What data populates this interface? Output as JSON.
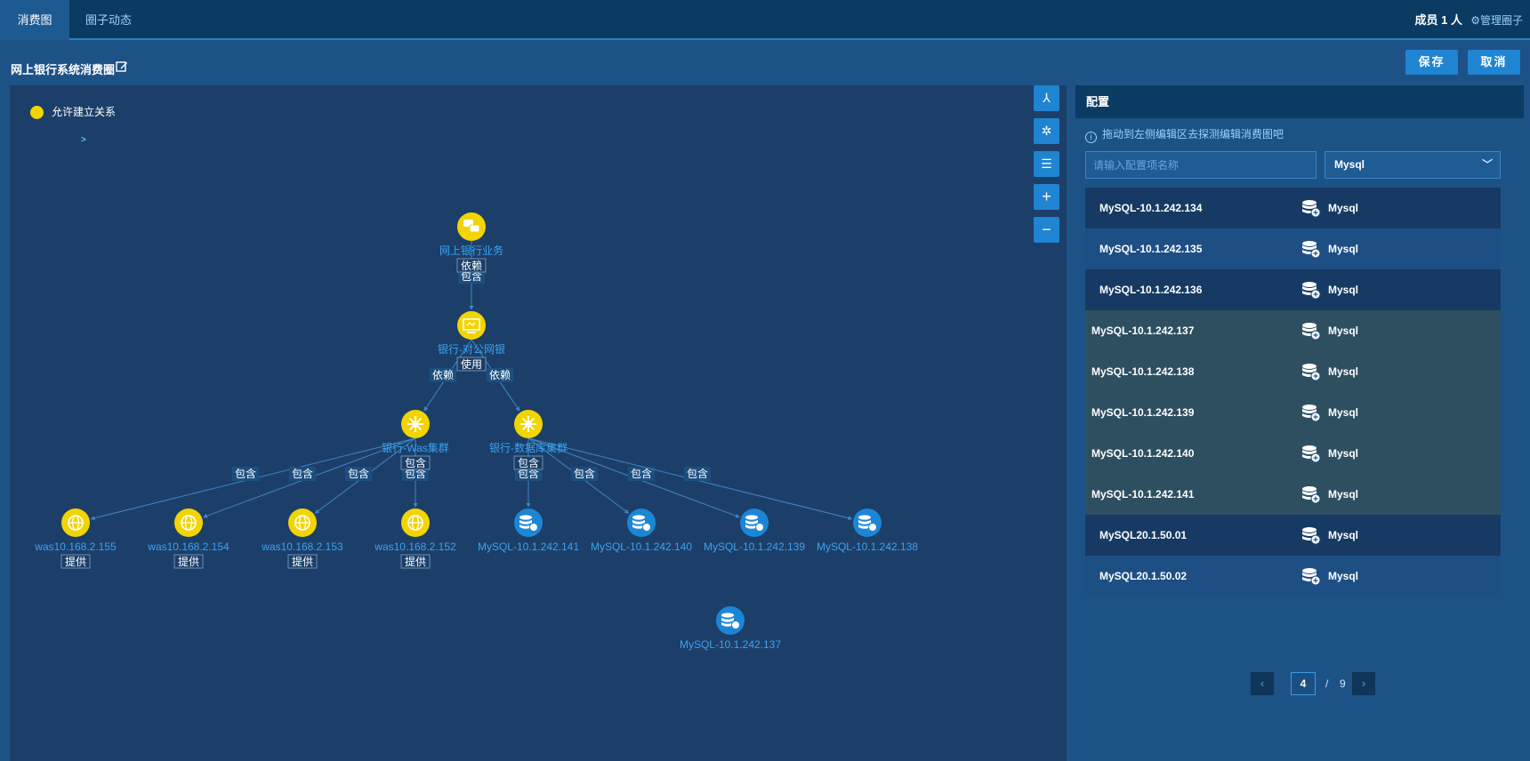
{
  "tabs": [
    {
      "label": "消费图"
    },
    {
      "label": "圈子动态"
    }
  ],
  "header": {
    "members": "成员 1 人",
    "manage": "管理圈子"
  },
  "page": {
    "title": "网上银行系统消费圈",
    "save": "保存",
    "cancel": "取消"
  },
  "legend": {
    "label": "允许建立关系",
    "color": "#f2d500"
  },
  "tools": [
    "layout-icon",
    "star-layout-icon",
    "tree-layout-icon",
    "zoom-in-icon",
    "zoom-out-icon"
  ],
  "graph": {
    "nodes": [
      {
        "id": "biz",
        "label": "网上银行业务",
        "kind": "business"
      },
      {
        "id": "portal",
        "label": "银行-对公网银",
        "kind": "portal"
      },
      {
        "id": "was",
        "label": "银行-Was集群",
        "kind": "cluster"
      },
      {
        "id": "db",
        "label": "银行-数据库集群",
        "kind": "cluster"
      },
      {
        "id": "w155",
        "label": "was10.168.2.155",
        "kind": "was"
      },
      {
        "id": "w154",
        "label": "was10.168.2.154",
        "kind": "was"
      },
      {
        "id": "w153",
        "label": "was10.168.2.153",
        "kind": "was"
      },
      {
        "id": "w152",
        "label": "was10.168.2.152",
        "kind": "was"
      },
      {
        "id": "m141",
        "label": "MySQL-10.1.242.141",
        "kind": "mysql"
      },
      {
        "id": "m140",
        "label": "MySQL-10.1.242.140",
        "kind": "mysql"
      },
      {
        "id": "m139",
        "label": "MySQL-10.1.242.139",
        "kind": "mysql"
      },
      {
        "id": "m138",
        "label": "MySQL-10.1.242.138",
        "kind": "mysql"
      },
      {
        "id": "m137",
        "label": "MySQL-10.1.242.137",
        "kind": "mysql"
      }
    ],
    "edges": [
      {
        "from": "biz",
        "to": "portal",
        "label": "包含"
      },
      {
        "from": "portal",
        "to": "was",
        "label": "依赖"
      },
      {
        "from": "portal",
        "to": "db",
        "label": "依赖"
      },
      {
        "from": "was",
        "to": "w155",
        "label": "包含"
      },
      {
        "from": "was",
        "to": "w154",
        "label": "包含"
      },
      {
        "from": "was",
        "to": "w153",
        "label": "包含"
      },
      {
        "from": "was",
        "to": "w152",
        "label": "包含"
      },
      {
        "from": "db",
        "to": "m141",
        "label": "包含"
      },
      {
        "from": "db",
        "to": "m140",
        "label": "包含"
      },
      {
        "from": "db",
        "to": "m139",
        "label": "包含"
      },
      {
        "from": "db",
        "to": "m138",
        "label": "包含"
      }
    ],
    "tags": [
      {
        "node": "biz",
        "label": "依赖"
      },
      {
        "node": "portal",
        "label": "使用"
      },
      {
        "node": "was",
        "label": "包含"
      },
      {
        "node": "db",
        "label": "包含"
      },
      {
        "node": "w155",
        "label": "提供"
      },
      {
        "node": "w154",
        "label": "提供"
      },
      {
        "node": "w153",
        "label": "提供"
      },
      {
        "node": "w152",
        "label": "提供"
      }
    ]
  },
  "panel": {
    "title": "配置",
    "hint": "拖动到左侧编辑区去探测编辑消费图吧",
    "search_placeholder": "请输入配置项名称",
    "type_filter": "Mysql",
    "rows": [
      {
        "name": "MySQL-10.1.242.134",
        "type": "Mysql",
        "highlight": false
      },
      {
        "name": "MySQL-10.1.242.135",
        "type": "Mysql",
        "highlight": false
      },
      {
        "name": "MySQL-10.1.242.136",
        "type": "Mysql",
        "highlight": false
      },
      {
        "name": "MySQL-10.1.242.137",
        "type": "Mysql",
        "highlight": true
      },
      {
        "name": "MySQL-10.1.242.138",
        "type": "Mysql",
        "highlight": true
      },
      {
        "name": "MySQL-10.1.242.139",
        "type": "Mysql",
        "highlight": true
      },
      {
        "name": "MySQL-10.1.242.140",
        "type": "Mysql",
        "highlight": true
      },
      {
        "name": "MySQL-10.1.242.141",
        "type": "Mysql",
        "highlight": true
      },
      {
        "name": "MySQL20.1.50.01",
        "type": "Mysql",
        "highlight": false
      },
      {
        "name": "MySQL20.1.50.02",
        "type": "Mysql",
        "highlight": false
      }
    ],
    "pagination": {
      "current": "4",
      "total": "9",
      "separator": "/"
    }
  },
  "colors": {
    "yellow": "#f2d500",
    "blue_node": "#1c86d6",
    "link": "#3aa3f0",
    "edge": "#3f86c2"
  }
}
